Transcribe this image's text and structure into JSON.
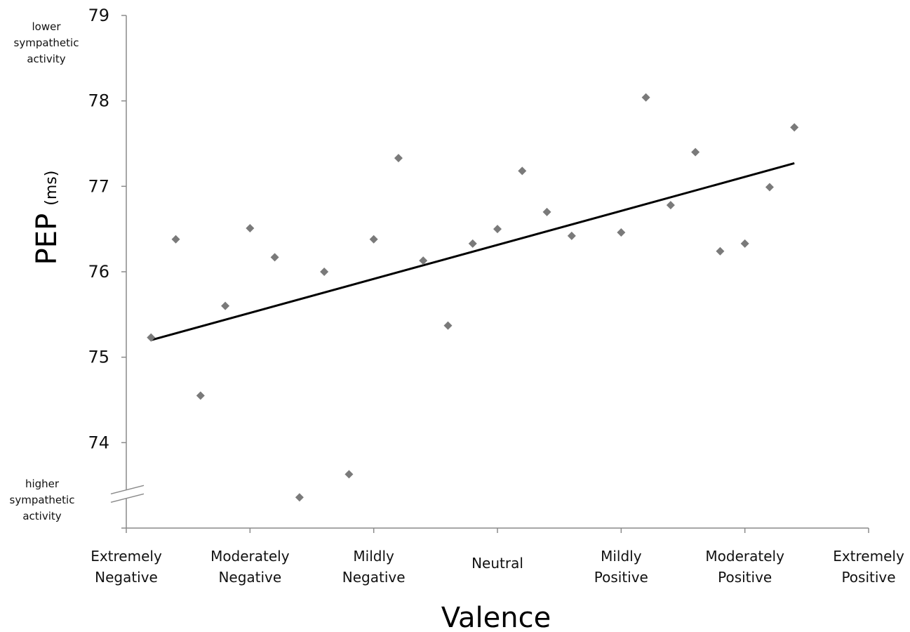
{
  "chart_data": {
    "type": "scatter",
    "title": "",
    "xlabel": "Valence",
    "ylabel": "PEP",
    "ylabel_unit": "(ms)",
    "ylim": [
      73,
      79
    ],
    "yticks": [
      74,
      75,
      76,
      77,
      78,
      79
    ],
    "y_axis_break": true,
    "grid": false,
    "xlim": [
      0,
      6
    ],
    "categories": [
      [
        "Extremely",
        "Negative"
      ],
      [
        "Moderately",
        "Negative"
      ],
      [
        "Mildly",
        "Negative"
      ],
      [
        "Neutral"
      ],
      [
        "Mildly",
        "Positive"
      ],
      [
        "Moderately",
        "Positive"
      ],
      [
        "Extremely",
        "Positive"
      ]
    ],
    "annotations": {
      "top": [
        "lower",
        "sympathetic",
        "activity"
      ],
      "bottom": [
        "higher",
        "sympathetic",
        "activity"
      ]
    },
    "series": [
      {
        "marker": "diamond",
        "color": "#7a7a7a",
        "points": [
          [
            0.2,
            75.23
          ],
          [
            0.4,
            76.38
          ],
          [
            0.6,
            74.55
          ],
          [
            0.8,
            75.6
          ],
          [
            1.0,
            76.51
          ],
          [
            1.2,
            76.17
          ],
          [
            1.4,
            73.36
          ],
          [
            1.6,
            76.0
          ],
          [
            1.8,
            73.63
          ],
          [
            2.0,
            76.38
          ],
          [
            2.2,
            77.33
          ],
          [
            2.4,
            76.13
          ],
          [
            2.6,
            75.37
          ],
          [
            2.8,
            76.33
          ],
          [
            3.0,
            76.5
          ],
          [
            3.2,
            77.18
          ],
          [
            3.4,
            76.7
          ],
          [
            3.6,
            76.42
          ],
          [
            4.0,
            76.46
          ],
          [
            4.2,
            78.04
          ],
          [
            4.4,
            76.78
          ],
          [
            4.6,
            77.4
          ],
          [
            4.8,
            76.24
          ],
          [
            5.0,
            76.33
          ],
          [
            5.2,
            76.99
          ],
          [
            5.4,
            77.69
          ]
        ]
      }
    ],
    "trendline": {
      "color": "#000000",
      "x": [
        0.2,
        5.4
      ],
      "y": [
        75.2,
        77.27
      ]
    }
  }
}
